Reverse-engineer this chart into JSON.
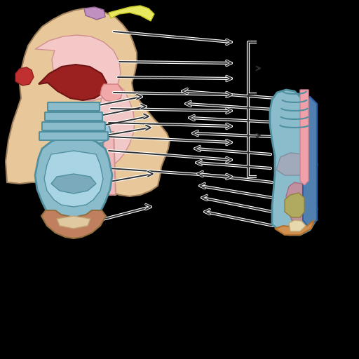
{
  "background_color": "#000000",
  "fig_size": [
    5.12,
    5.12
  ],
  "dpi": 100,
  "face_color": "#E8C89A",
  "pink_inner": "#F5C8C8",
  "dark_red": "#9B2020",
  "blue_trachea": "#8BBCCC",
  "pink_esophagus": "#F0B8B8"
}
